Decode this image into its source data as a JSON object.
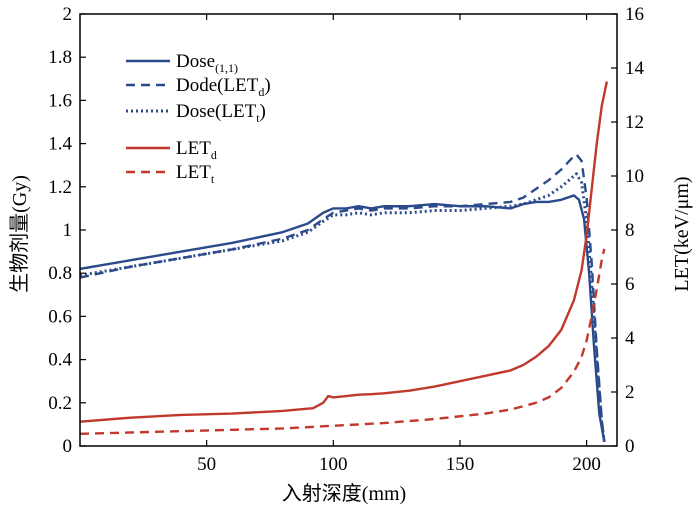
{
  "chart_data": {
    "type": "line",
    "xlabel": "入射深度(mm)",
    "ylabel": "生物剂量(Gy)",
    "y2label": "LET(keV/μm)",
    "xlim": [
      0,
      212
    ],
    "ylim": [
      0,
      2
    ],
    "y2lim": [
      0,
      16
    ],
    "xticks": [
      "50",
      "100",
      "150",
      "200"
    ],
    "xtick_values": [
      50,
      100,
      150,
      200
    ],
    "yticks": [
      "0",
      "0.2",
      "0.4",
      "0.6",
      "0.8",
      "1",
      "1.2",
      "1.4",
      "1.6",
      "1.8",
      "2"
    ],
    "ytick_values": [
      0,
      0.2,
      0.4,
      0.6,
      0.8,
      1,
      1.2,
      1.4,
      1.6,
      1.8,
      2
    ],
    "y2ticks": [
      "0",
      "2",
      "4",
      "6",
      "8",
      "10",
      "12",
      "14",
      "16"
    ],
    "y2tick_values": [
      0,
      2,
      4,
      6,
      8,
      10,
      12,
      14,
      16
    ],
    "legend_position": "top-left",
    "colors": {
      "blue": "#2b4a8c",
      "red": "#c0392b"
    },
    "series": [
      {
        "name": "Dose",
        "name_sub": "(1,1)",
        "axis": "left",
        "style": "solid",
        "color": "#2b4a8c",
        "x": [
          0,
          20,
          40,
          60,
          80,
          90,
          96,
          100,
          105,
          110,
          115,
          120,
          130,
          140,
          150,
          160,
          170,
          175,
          180,
          185,
          190,
          195,
          197,
          199,
          201,
          203,
          205,
          207
        ],
        "y": [
          0.82,
          0.86,
          0.9,
          0.94,
          0.99,
          1.03,
          1.08,
          1.1,
          1.1,
          1.11,
          1.1,
          1.11,
          1.11,
          1.12,
          1.11,
          1.11,
          1.1,
          1.12,
          1.13,
          1.13,
          1.14,
          1.16,
          1.14,
          1.05,
          0.8,
          0.45,
          0.15,
          0.02
        ]
      },
      {
        "name": "Dode(LET",
        "name_sub": "d",
        "name_suffix": ")",
        "axis": "left",
        "style": "dash",
        "color": "#2b4a8c",
        "x": [
          0,
          20,
          40,
          60,
          80,
          90,
          96,
          100,
          105,
          110,
          115,
          120,
          130,
          140,
          150,
          160,
          170,
          175,
          180,
          185,
          190,
          194,
          196,
          198,
          200,
          202,
          204,
          206,
          207
        ],
        "y": [
          0.78,
          0.83,
          0.87,
          0.91,
          0.96,
          1.0,
          1.05,
          1.08,
          1.09,
          1.1,
          1.09,
          1.1,
          1.1,
          1.11,
          1.11,
          1.12,
          1.13,
          1.15,
          1.19,
          1.23,
          1.28,
          1.33,
          1.35,
          1.32,
          1.15,
          0.85,
          0.45,
          0.12,
          0.02
        ]
      },
      {
        "name": "Dose(LET",
        "name_sub": "t",
        "name_suffix": ")",
        "axis": "left",
        "style": "dot",
        "color": "#2b4a8c",
        "x": [
          0,
          20,
          40,
          60,
          80,
          90,
          96,
          100,
          105,
          110,
          115,
          120,
          130,
          140,
          150,
          160,
          170,
          175,
          180,
          185,
          190,
          194,
          196,
          198,
          200,
          202,
          204,
          206,
          207
        ],
        "y": [
          0.79,
          0.83,
          0.87,
          0.91,
          0.95,
          0.99,
          1.04,
          1.07,
          1.07,
          1.08,
          1.07,
          1.08,
          1.08,
          1.09,
          1.09,
          1.1,
          1.11,
          1.12,
          1.14,
          1.16,
          1.2,
          1.24,
          1.26,
          1.22,
          1.05,
          0.75,
          0.4,
          0.1,
          0.02
        ]
      },
      {
        "name": "LET",
        "name_sub": "d",
        "axis": "right",
        "style": "solid",
        "color": "#c0392b",
        "x": [
          0,
          20,
          40,
          60,
          80,
          92,
          96,
          98,
          100,
          105,
          110,
          115,
          120,
          130,
          140,
          150,
          160,
          170,
          175,
          180,
          185,
          190,
          195,
          198,
          200,
          202,
          204,
          206,
          208
        ],
        "y": [
          0.9,
          1.05,
          1.15,
          1.2,
          1.3,
          1.4,
          1.6,
          1.85,
          1.8,
          1.85,
          1.9,
          1.92,
          1.95,
          2.05,
          2.2,
          2.4,
          2.6,
          2.8,
          3.0,
          3.3,
          3.7,
          4.3,
          5.4,
          6.5,
          7.8,
          9.5,
          11.2,
          12.6,
          13.5
        ]
      },
      {
        "name": "LET",
        "name_sub": "t",
        "axis": "right",
        "style": "dash",
        "color": "#c0392b",
        "x": [
          0,
          20,
          40,
          60,
          80,
          100,
          120,
          140,
          160,
          170,
          180,
          185,
          190,
          195,
          198,
          200,
          202,
          204,
          206,
          207
        ],
        "y": [
          0.45,
          0.5,
          0.55,
          0.6,
          0.65,
          0.75,
          0.85,
          1.0,
          1.2,
          1.35,
          1.6,
          1.8,
          2.15,
          2.75,
          3.3,
          3.9,
          4.8,
          5.8,
          6.9,
          7.3
        ]
      }
    ]
  }
}
